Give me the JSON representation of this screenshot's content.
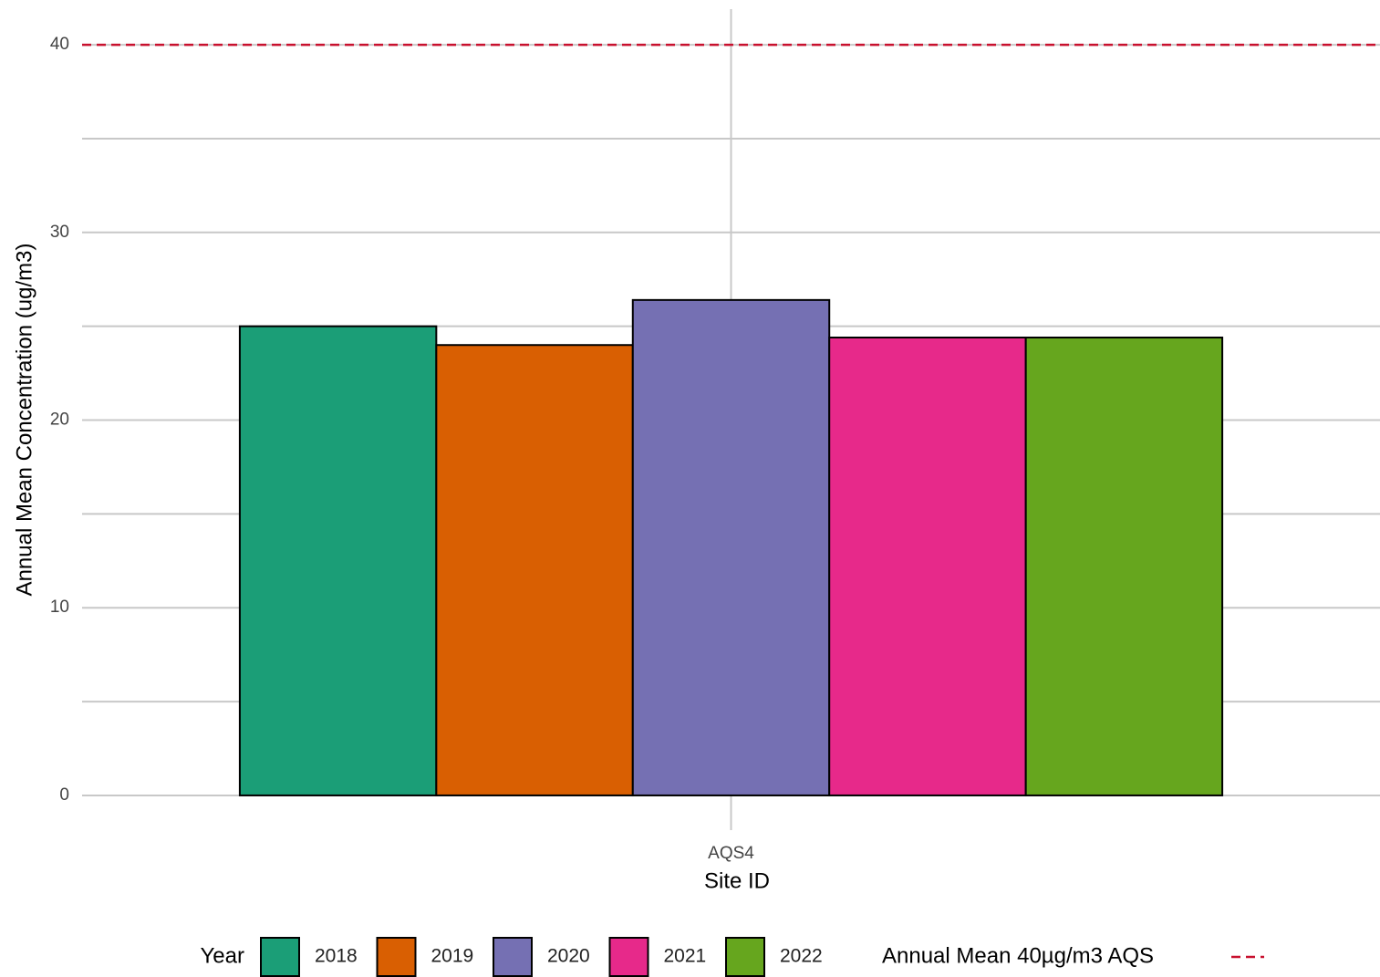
{
  "chart_data": {
    "type": "bar",
    "x_label": "Site ID",
    "y_label": "Annual Mean Concentration (ug/m3)",
    "categories": [
      "AQS4"
    ],
    "legend_title": "Year",
    "series": [
      {
        "name": "2018",
        "color": "#1b9e77",
        "values": [
          25.0
        ]
      },
      {
        "name": "2019",
        "color": "#d95f02",
        "values": [
          24.0
        ]
      },
      {
        "name": "2020",
        "color": "#7570b3",
        "values": [
          26.4
        ]
      },
      {
        "name": "2021",
        "color": "#e7298a",
        "values": [
          24.4
        ]
      },
      {
        "name": "2022",
        "color": "#66a61e",
        "values": [
          24.4
        ]
      }
    ],
    "reference_line": {
      "value": 40,
      "label": "Annual Mean 40µg/m3 AQS",
      "color": "#c8102e"
    },
    "ylim": [
      -1.85,
      41.9
    ],
    "yticks": [
      0,
      10,
      20,
      30,
      40
    ],
    "minor_yticks": [
      5,
      15,
      25,
      35
    ],
    "grid": true,
    "legend": "bottom"
  }
}
